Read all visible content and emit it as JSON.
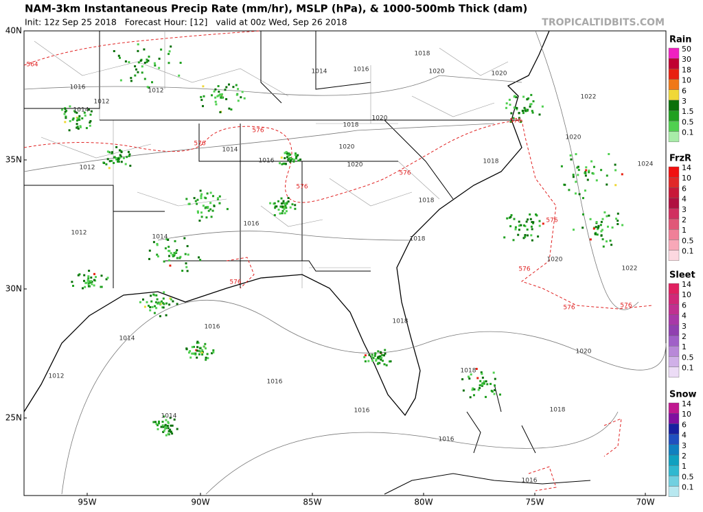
{
  "header": {
    "title": "NAM-3km Instantaneous Precip Rate (mm/hr), MSLP (hPa), & 1000-500mb Thick (dam)",
    "init": "Init: 12z Sep 25 2018   Forecast Hour: [12]   valid at 00z Wed, Sep 26 2018",
    "brand": "TROPICALTIDBITS.COM"
  },
  "axes": {
    "lat_labels": [
      "40N",
      "35N",
      "30N",
      "25N"
    ],
    "lon_labels": [
      "95W",
      "90W",
      "85W",
      "80W",
      "75W",
      "70W"
    ]
  },
  "legend": [
    {
      "title": "Rain",
      "items": [
        {
          "label": "50",
          "color": "#f020c0"
        },
        {
          "label": "30",
          "color": "#c00030"
        },
        {
          "label": "18",
          "color": "#e82010"
        },
        {
          "label": "10",
          "color": "#f07818"
        },
        {
          "label": "6",
          "color": "#f0d838"
        },
        {
          "label": "3",
          "color": "#0a700a"
        },
        {
          "label": "1.5",
          "color": "#20a020"
        },
        {
          "label": "0.5",
          "color": "#50d050"
        },
        {
          "label": "0.1",
          "color": "#a8eca8"
        }
      ]
    },
    {
      "title": "FrzR",
      "items": [
        {
          "label": "14",
          "color": "#f01010"
        },
        {
          "label": "10",
          "color": "#e02828"
        },
        {
          "label": "6",
          "color": "#c81838"
        },
        {
          "label": "4",
          "color": "#b01040"
        },
        {
          "label": "3",
          "color": "#d03060"
        },
        {
          "label": "2",
          "color": "#e05878"
        },
        {
          "label": "1",
          "color": "#f08098"
        },
        {
          "label": "0.5",
          "color": "#f8a8b8"
        },
        {
          "label": "0.1",
          "color": "#fcd8e0"
        }
      ]
    },
    {
      "title": "Sleet",
      "items": [
        {
          "label": "14",
          "color": "#e02060"
        },
        {
          "label": "10",
          "color": "#d02878"
        },
        {
          "label": "6",
          "color": "#c03090"
        },
        {
          "label": "4",
          "color": "#a838a8"
        },
        {
          "label": "3",
          "color": "#9040b0"
        },
        {
          "label": "2",
          "color": "#a060c8"
        },
        {
          "label": "1",
          "color": "#b888d8"
        },
        {
          "label": "0.5",
          "color": "#d0b0e8"
        },
        {
          "label": "0.1",
          "color": "#ecdcf6"
        }
      ]
    },
    {
      "title": "Snow",
      "items": [
        {
          "label": "14",
          "color": "#c01890"
        },
        {
          "label": "10",
          "color": "#8010a0"
        },
        {
          "label": "6",
          "color": "#1820a0"
        },
        {
          "label": "4",
          "color": "#2050c0"
        },
        {
          "label": "3",
          "color": "#1080c0"
        },
        {
          "label": "2",
          "color": "#10a0c0"
        },
        {
          "label": "1",
          "color": "#30b8d0"
        },
        {
          "label": "0.5",
          "color": "#70d0e0"
        },
        {
          "label": "0.1",
          "color": "#b8e8f0"
        }
      ]
    }
  ],
  "mslp_labels": [
    "1018",
    "1014",
    "1016",
    "1020",
    "1020",
    "1016",
    "1012",
    "1012",
    "1014",
    "1022",
    "1018",
    "1020",
    "1014",
    "1020",
    "1020",
    "1016",
    "1012",
    "1020",
    "1018",
    "1024",
    "1018",
    "1016",
    "1018",
    "1012",
    "1014",
    "1020",
    "1022",
    "1018",
    "1016",
    "1014",
    "1020",
    "1012",
    "1018",
    "1016",
    "1016",
    "1018",
    "1014",
    "1016",
    "1016"
  ],
  "thickness_labels": [
    "564",
    "576",
    "576",
    "576",
    "576",
    "576",
    "576",
    "576",
    "576",
    "576",
    "576"
  ]
}
